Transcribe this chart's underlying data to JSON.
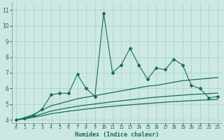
{
  "xlabel": "Humidex (Indice chaleur)",
  "x": [
    0,
    1,
    2,
    3,
    4,
    5,
    6,
    7,
    8,
    9,
    10,
    11,
    12,
    13,
    14,
    15,
    16,
    17,
    18,
    19,
    20,
    21,
    22,
    23
  ],
  "line1": [
    4.0,
    4.1,
    4.3,
    4.7,
    5.6,
    5.7,
    5.7,
    6.9,
    6.0,
    5.5,
    10.8,
    7.0,
    7.5,
    8.55,
    7.5,
    6.6,
    7.3,
    7.2,
    7.85,
    7.5,
    6.2,
    6.0,
    5.4,
    5.5
  ],
  "line2": [
    4.0,
    4.15,
    4.35,
    4.65,
    4.9,
    5.05,
    5.2,
    5.35,
    5.45,
    5.55,
    5.65,
    5.75,
    5.85,
    5.95,
    6.05,
    6.15,
    6.2,
    6.3,
    6.4,
    6.5,
    6.55,
    6.6,
    6.65,
    6.7
  ],
  "line3": [
    4.0,
    4.1,
    4.22,
    4.4,
    4.57,
    4.68,
    4.78,
    4.87,
    4.95,
    5.02,
    5.09,
    5.16,
    5.22,
    5.28,
    5.34,
    5.4,
    5.45,
    5.5,
    5.54,
    5.58,
    5.62,
    5.65,
    5.68,
    5.71
  ],
  "line4": [
    4.0,
    4.08,
    4.17,
    4.28,
    4.4,
    4.48,
    4.56,
    4.63,
    4.7,
    4.76,
    4.82,
    4.87,
    4.92,
    4.96,
    5.01,
    5.05,
    5.09,
    5.13,
    5.17,
    5.2,
    5.23,
    5.26,
    5.28,
    5.31
  ],
  "line_color": "#1a6b5e",
  "bg_color": "#cce8e3",
  "grid_color": "#aacec8",
  "ylim": [
    3.8,
    11.5
  ],
  "xlim": [
    -0.5,
    23.5
  ],
  "yticks": [
    4,
    5,
    6,
    7,
    8,
    9,
    10,
    11
  ],
  "xtick_labels": [
    "0",
    "1",
    "2",
    "3",
    "4",
    "5",
    "6",
    "7",
    "8",
    "9",
    "10",
    "11",
    "12",
    "13",
    "14",
    "15",
    "16",
    "17",
    "18",
    "19",
    "20",
    "21",
    "22",
    "23"
  ]
}
